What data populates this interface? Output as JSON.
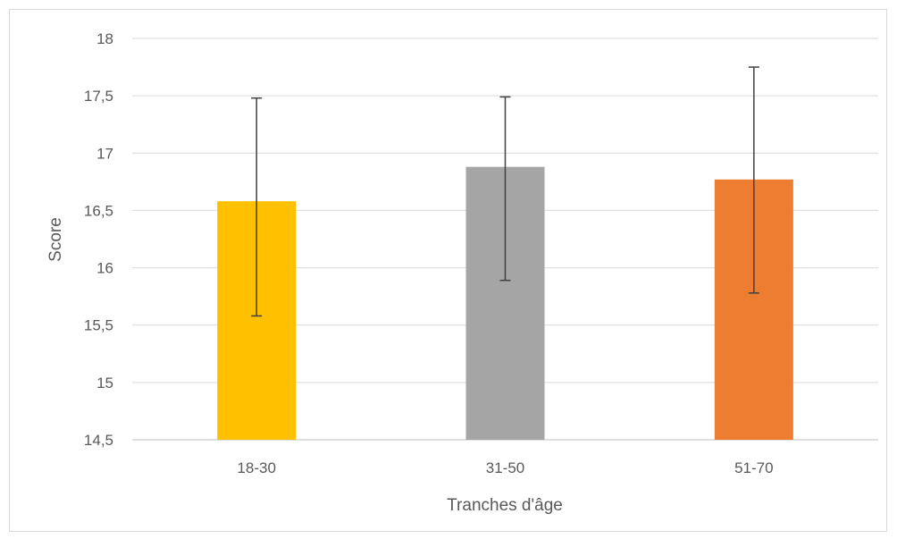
{
  "chart_data": {
    "type": "bar",
    "categories": [
      "18-30",
      "31-50",
      "51-70"
    ],
    "values": [
      16.58,
      16.88,
      16.77
    ],
    "error_bars": {
      "upper": [
        17.48,
        17.49,
        17.75
      ],
      "lower": [
        15.58,
        15.89,
        15.78
      ]
    },
    "colors": [
      "#FFC000",
      "#A5A5A5",
      "#ED7D31"
    ],
    "xlabel": "Tranches d'âge",
    "ylabel": "Score",
    "ylim": [
      14.5,
      18
    ],
    "yticks": [
      14.5,
      15,
      15.5,
      16,
      16.5,
      17,
      17.5,
      18
    ],
    "ytick_labels": [
      "14,5",
      "15",
      "15,5",
      "16",
      "16,5",
      "17",
      "17,5",
      "18"
    ],
    "grid": true,
    "legend": "none"
  }
}
